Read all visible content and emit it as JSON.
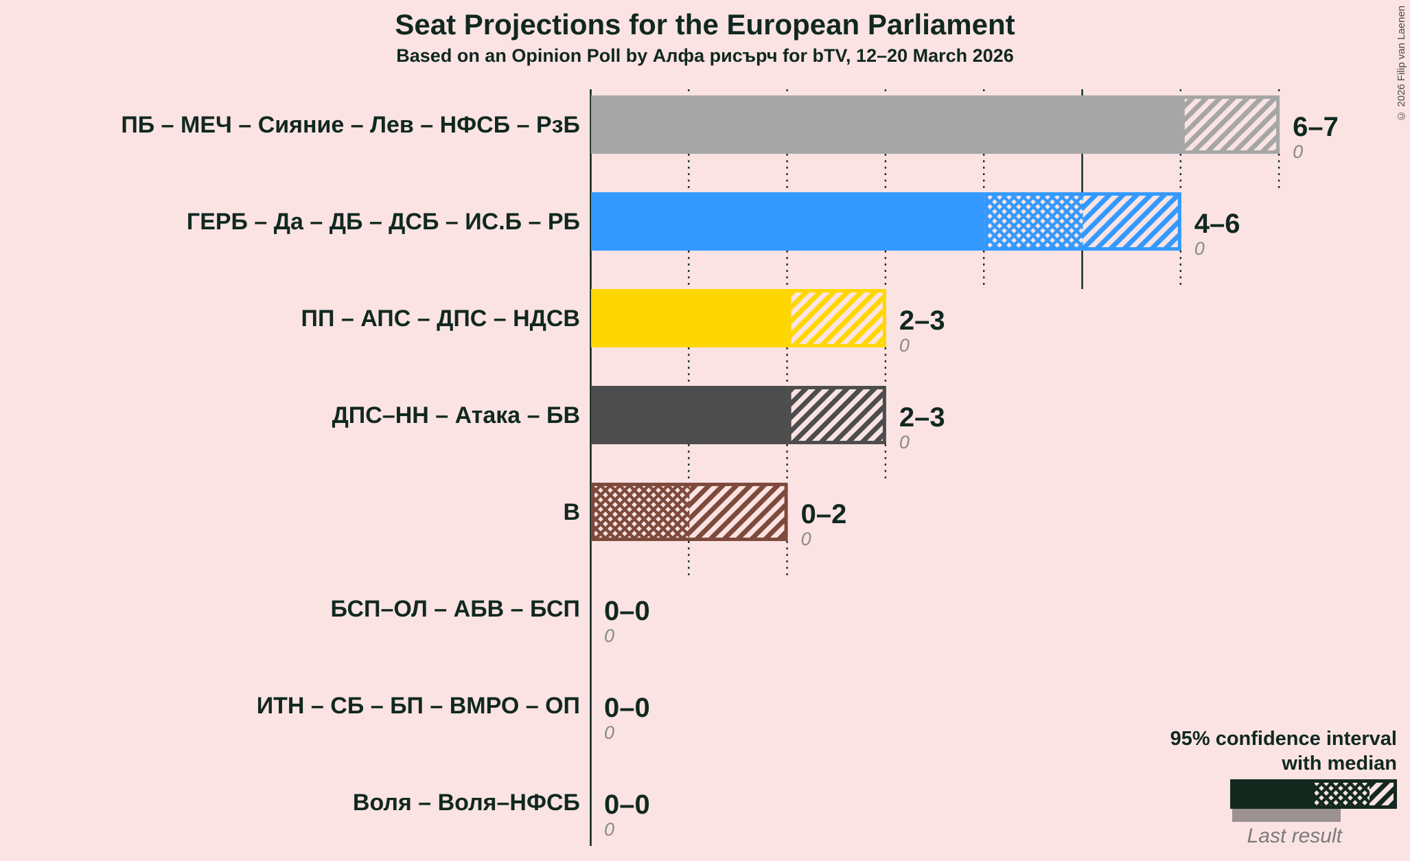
{
  "copyright": "© 2026 Filip van Laenen",
  "colors": {
    "background": "#FBE3E3",
    "text": "#102820",
    "gridline": "#102820",
    "last_result_text": "#8A8A8A"
  },
  "legend": {
    "ci_label_line1": "95% confidence interval",
    "ci_label_line2": "with median",
    "last_result_label": "Last result",
    "sample_color": "#13291F",
    "last_result_bar_color": "#9B9190"
  },
  "chart_data": {
    "type": "bar",
    "title": "Seat Projections for the European Parliament",
    "subtitle": "Based on an Opinion Poll by Алфа рисърч for bTV, 12–20 March 2026",
    "orientation": "horizontal",
    "x_axis": {
      "min": 0,
      "max": 7,
      "gridline_interval": 1,
      "solid_gridline_interval": 5,
      "grid": "dotted"
    },
    "legend_position": "bottom-right",
    "rows": [
      {
        "label": "ПБ – МЕЧ – Сияние – Лев – НФСБ – РзБ",
        "ci_low": 6,
        "median": 6,
        "ci_high": 7,
        "value_label": "6–7",
        "last_result": "0",
        "color": "#A6A6A6"
      },
      {
        "label": "ГЕРБ – Да – ДБ – ДСБ – ИС.Б – РБ",
        "ci_low": 4,
        "median": 5,
        "ci_high": 6,
        "value_label": "4–6",
        "last_result": "0",
        "color": "#3399FF"
      },
      {
        "label": "ПП – АПС – ДПС – НДСВ",
        "ci_low": 2,
        "median": 2,
        "ci_high": 3,
        "value_label": "2–3",
        "last_result": "0",
        "color": "#FFD700"
      },
      {
        "label": "ДПС–НН – Атака – БВ",
        "ci_low": 2,
        "median": 2,
        "ci_high": 3,
        "value_label": "2–3",
        "last_result": "0",
        "color": "#4D4D4D"
      },
      {
        "label": "В",
        "ci_low": 0,
        "median": 1,
        "ci_high": 2,
        "value_label": "0–2",
        "last_result": "0",
        "color": "#7D4A3C"
      },
      {
        "label": "БСП–ОЛ – АБВ – БСП",
        "ci_low": 0,
        "median": 0,
        "ci_high": 0,
        "value_label": "0–0",
        "last_result": "0",
        "color": null
      },
      {
        "label": "ИТН – СБ – БП – ВМРО – ОП",
        "ci_low": 0,
        "median": 0,
        "ci_high": 0,
        "value_label": "0–0",
        "last_result": "0",
        "color": null
      },
      {
        "label": "Воля – Воля–НФСБ",
        "ci_low": 0,
        "median": 0,
        "ci_high": 0,
        "value_label": "0–0",
        "last_result": "0",
        "color": null
      }
    ]
  }
}
